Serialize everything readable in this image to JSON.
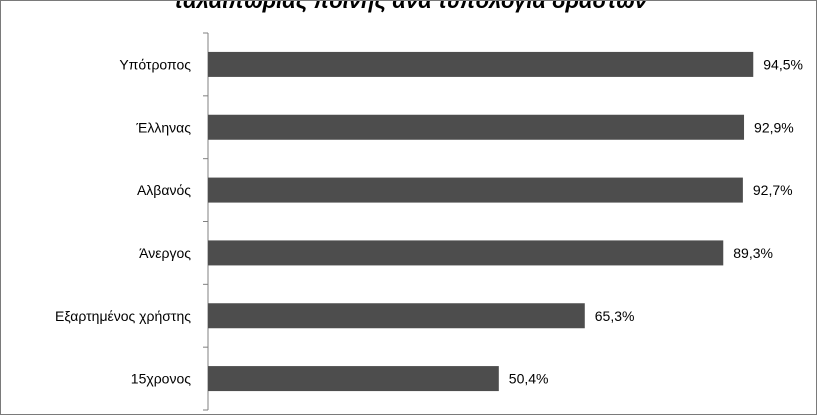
{
  "chart_data": {
    "type": "bar",
    "orientation": "horizontal",
    "title": "ταλαιπωρίας ποινής ανά τυπολογία δράστων",
    "categories": [
      "Υπότροπος",
      "Έλληνας",
      "Αλβανός",
      "Άνεργος",
      "Εξαρτημένος χρήστης",
      "15χρονος"
    ],
    "values": [
      94.5,
      92.9,
      92.7,
      89.3,
      65.3,
      50.4
    ],
    "value_labels": [
      "94,5%",
      "92,9%",
      "92,7%",
      "89,3%",
      "65,3%",
      "50,4%"
    ],
    "xlim": [
      0,
      100
    ],
    "bar_color": "#4d4d4d",
    "grid": false,
    "legend": "none"
  }
}
